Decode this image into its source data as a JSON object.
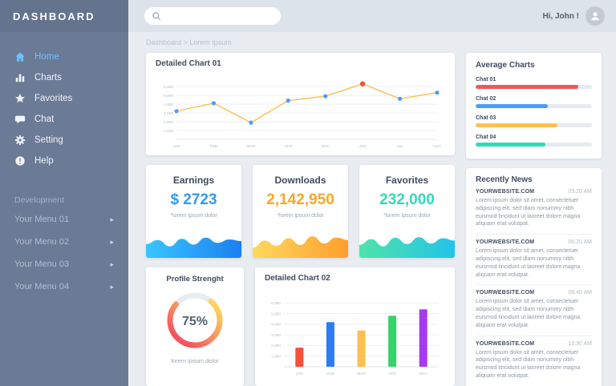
{
  "theme": {
    "sidebar_bg": "#6b7a95",
    "topbar_bg": "#dde3ea",
    "content_bg": "#e9edf2",
    "active_item_color": "#6fc0ff"
  },
  "sidebar": {
    "title": "DASHBOARD",
    "items": [
      {
        "label": "Home",
        "icon": "home-icon",
        "active": true
      },
      {
        "label": "Charts",
        "icon": "bar-chart-icon",
        "active": false
      },
      {
        "label": "Favorites",
        "icon": "star-icon",
        "active": false
      },
      {
        "label": "Chat",
        "icon": "chat-icon",
        "active": false
      },
      {
        "label": "Setting",
        "icon": "gear-icon",
        "active": false
      },
      {
        "label": "Help",
        "icon": "help-icon",
        "active": false
      }
    ],
    "section_label": "Development",
    "dev_items": [
      {
        "label": "Your Menu 01",
        "icon": "chevron-right-icon"
      },
      {
        "label": "Your Menu 02",
        "icon": "chevron-right-icon"
      },
      {
        "label": "Your Menu 03",
        "icon": "chevron-right-icon"
      },
      {
        "label": "Your Menu 04",
        "icon": "chevron-right-icon"
      }
    ]
  },
  "topbar": {
    "search_icon": "search-icon",
    "search_value": "",
    "greeting": "Hi, John !",
    "avatar_icon": "user-icon"
  },
  "breadcrumb": "Dashboard > Lorem Ipsum",
  "chart01": {
    "title": "Detailed Chart 01",
    "chart": {
      "type": "line",
      "categories": [
        "JAN",
        "FEB",
        "MAR",
        "APR",
        "MAY",
        "JUN",
        "JUL",
        "AUG"
      ],
      "values": [
        3200,
        4100,
        1900,
        4400,
        4900,
        6300,
        4600,
        5300
      ],
      "yticks": [
        1000,
        2000,
        3000,
        4000,
        5000,
        6000
      ],
      "ymax": 7000,
      "line_color": "#fdbd4e",
      "point_color": "#4d9df8",
      "highlight_index": 5,
      "highlight_color": "#f4503a",
      "grid": true
    }
  },
  "average": {
    "title": "Average Charts",
    "bars": [
      {
        "label": "Chat 01",
        "value": 88,
        "color": "#f25656"
      },
      {
        "label": "Chat 02",
        "value": 62,
        "color": "#4d9df8"
      },
      {
        "label": "Chat 03",
        "value": 70,
        "color": "#fdc04e"
      },
      {
        "label": "Chat 04",
        "value": 60,
        "color": "#35d8b9"
      }
    ]
  },
  "stats": [
    {
      "title": "Earnings",
      "value": "$ 2723",
      "note": "*lorem ipsum dolor",
      "color": "#2f9bf4",
      "gradient": [
        "#38c6ff",
        "#1b7ff0"
      ],
      "spark": [
        48,
        62,
        40,
        66,
        46,
        70,
        52,
        64,
        58
      ]
    },
    {
      "title": "Downloads",
      "value": "2,142,950",
      "note": "*lorem ipsum dolor",
      "color": "#fba629",
      "gradient": [
        "#ffd85e",
        "#ff9f2e"
      ],
      "spark": [
        35,
        60,
        42,
        68,
        45,
        75,
        50,
        70,
        62
      ]
    },
    {
      "title": "Favorites",
      "value": "232,000",
      "note": "*lorem Ipsum dolor",
      "color": "#35d8b9",
      "gradient": [
        "#4fe3a9",
        "#23c3ea"
      ],
      "spark": [
        45,
        65,
        40,
        70,
        48,
        72,
        50,
        68,
        60
      ]
    }
  ],
  "profile": {
    "title": "Profile Strenght",
    "percent": 75,
    "percent_label": "75%",
    "caption": "lorem ipsum dolor",
    "ring_colors": [
      "#f5515f",
      "#ffd460"
    ],
    "ring_track_color": "#e9edf2"
  },
  "chart02": {
    "title": "Detailed Chart 02",
    "chart": {
      "type": "bar",
      "categories": [
        "JAN",
        "FEB",
        "MAR",
        "APR",
        "MAY"
      ],
      "values": [
        1800,
        4200,
        3400,
        4800,
        5400
      ],
      "colors": [
        "#f4503a",
        "#2e7bf6",
        "#fdc04e",
        "#35d469",
        "#a53bf0"
      ],
      "yticks": [
        1000,
        2000,
        3000,
        4000,
        5000,
        6000
      ],
      "ymax": 7000,
      "grid": true
    }
  },
  "news": {
    "title": "Recently News",
    "items": [
      {
        "source": "YOURWEBSITE.COM",
        "time": "05:20 AM",
        "text": "Lorem ipsum dolor sit amet, consectetuer adipiscing elit, sed diam nonummy nibh euismod tincidunt ut laoreet dolore magna aliquam erat volutpat."
      },
      {
        "source": "YOURWEBSITE.COM",
        "time": "06:20 AM",
        "text": "Lorem ipsum dolor sit amet, consectetuer adipiscing elit, sed diam nonummy nibh euismod tincidunt ut laoreet dolore magna aliquam erat volutpat."
      },
      {
        "source": "YOURWEBSITE.COM",
        "time": "06:40 AM",
        "text": "Lorem ipsum dolor sit amet, consectetuer adipiscing elit, sed diam nonummy nibh euismod tincidunt ut laoreet dolore magna aliquam erat volutpat."
      },
      {
        "source": "YOURWEBSITE.COM",
        "time": "10:30 AM",
        "text": "Lorem ipsum dolor sit amet, consectetuer adipiscing elit, sed diam nonummy nibh euismod tincidunt ut laoreet dolore magna aliquam erat volutpat."
      }
    ]
  }
}
